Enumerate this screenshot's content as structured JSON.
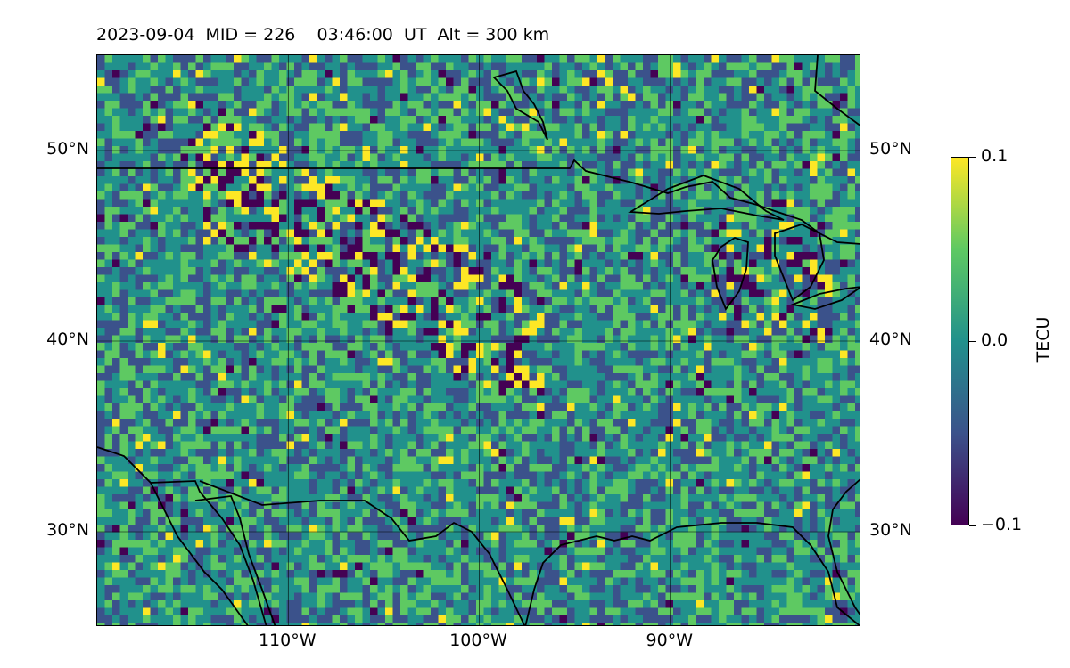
{
  "title": "2023-09-04  MID = 226    03:46:00  UT  Alt = 300 km",
  "map": {
    "lon_range": [
      -120,
      -80
    ],
    "lat_range": [
      25,
      55
    ],
    "lat_ticks": [
      {
        "value": 30,
        "label": "30°N"
      },
      {
        "value": 40,
        "label": "40°N"
      },
      {
        "value": 50,
        "label": "50°N"
      }
    ],
    "lon_ticks": [
      {
        "value": -110,
        "label": "110°W"
      },
      {
        "value": -100,
        "label": "100°W"
      },
      {
        "value": -90,
        "label": "90°W"
      }
    ],
    "gridlines": true,
    "field": "TEC perturbation",
    "colormap": "viridis",
    "colors": [
      "#440154",
      "#3b528b",
      "#21918c",
      "#5ec962",
      "#fde725"
    ]
  },
  "colorbar": {
    "label": "TECU",
    "min": -0.1,
    "max": 0.1,
    "ticks": [
      {
        "value": 0.1,
        "label": "0.1"
      },
      {
        "value": 0.0,
        "label": "0.0"
      },
      {
        "value": -0.1,
        "label": "−0.1"
      }
    ]
  }
}
